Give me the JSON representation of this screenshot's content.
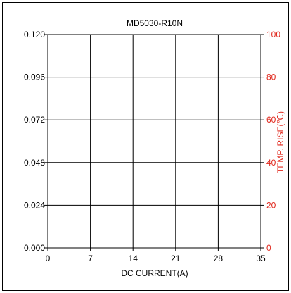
{
  "chart_data": {
    "type": "line",
    "title": "MD5030-R10N",
    "xlabel": "DC CURRENT(A)",
    "ylabel": "",
    "y2label": "TEMP. RISE(℃)",
    "xlim": [
      0,
      35
    ],
    "ylim": [
      0,
      0.12
    ],
    "y2lim": [
      0,
      100
    ],
    "x_ticks": [
      "0",
      "7",
      "14",
      "21",
      "28",
      "35"
    ],
    "y_ticks": [
      "0.000",
      "0.024",
      "0.048",
      "0.072",
      "0.096",
      "0.120"
    ],
    "y2_ticks": [
      "0",
      "20",
      "40",
      "60",
      "80",
      "100"
    ],
    "grid": true,
    "series": []
  },
  "colors": {
    "frame": "#000000",
    "grid": "#000000",
    "right_axis": "#e0261b",
    "background": "#ffffff"
  }
}
